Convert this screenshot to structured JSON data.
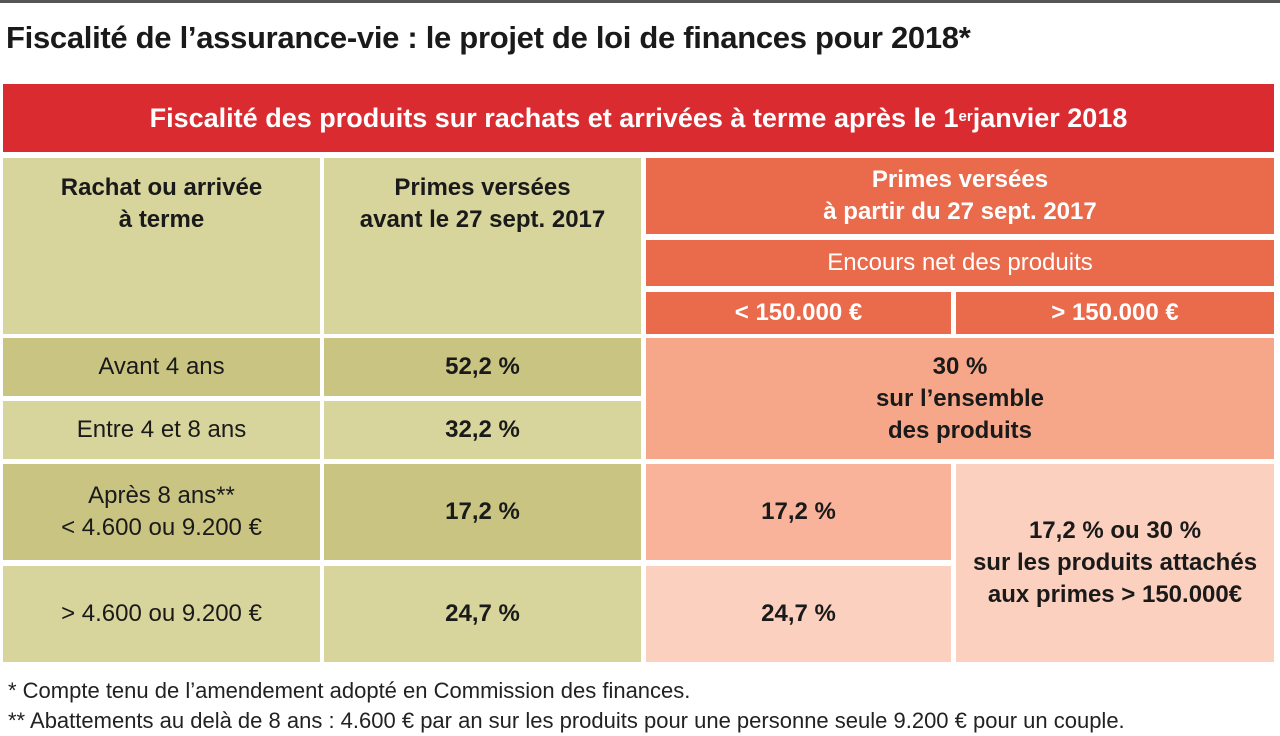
{
  "title": "Fiscalité de l’assurance-vie : le projet de loi de finances pour 2018*",
  "banner": {
    "text_before": "Fiscalité des produits sur rachats et arrivées à terme après le 1",
    "superscript": "er",
    "text_after": " janvier 2018"
  },
  "table": {
    "col1_header": [
      "Rachat ou arrivée",
      "à terme"
    ],
    "col2_header": [
      "Primes versées",
      "avant le 27 sept. 2017"
    ],
    "col3_header": [
      "Primes versées",
      "à partir du 27 sept. 2017"
    ],
    "col3_subheader": "Encours net des produits",
    "col3_split": [
      "< 150.000 €",
      "> 150.000 €"
    ],
    "rows": [
      {
        "label": [
          "Avant 4 ans"
        ],
        "before": "52,2 %"
      },
      {
        "label": [
          "Entre 4 et 8 ans"
        ],
        "before": "32,2 %"
      },
      {
        "label": [
          "Après 8 ans**",
          "< 4.600 ou 9.200 €"
        ],
        "before": "17,2 %",
        "under": "17,2 %"
      },
      {
        "label": [
          "> 4.600 ou 9.200 €"
        ],
        "before": "24,7 %",
        "under": "24,7 %"
      }
    ],
    "merged_flat": [
      "30 %",
      "sur l’ensemble",
      "des produits"
    ],
    "merged_over": [
      "17,2 % ou 30 %",
      "sur les produits attachés",
      "aux primes > 150.000€"
    ]
  },
  "footnotes": [
    "* Compte tenu de l’amendement adopté en Commission des finances.",
    "** Abattements au delà de 8 ans : 4.600 € par an sur les produits pour une personne seule 9.200 € pour un couple."
  ],
  "colors": {
    "banner_red": "#d92b30",
    "khaki_light": "#d7d49c",
    "khaki_dark": "#c9c482",
    "orange": "#ea6a4c",
    "salmon": "#f6a789",
    "peach": "#fbd0bf"
  }
}
